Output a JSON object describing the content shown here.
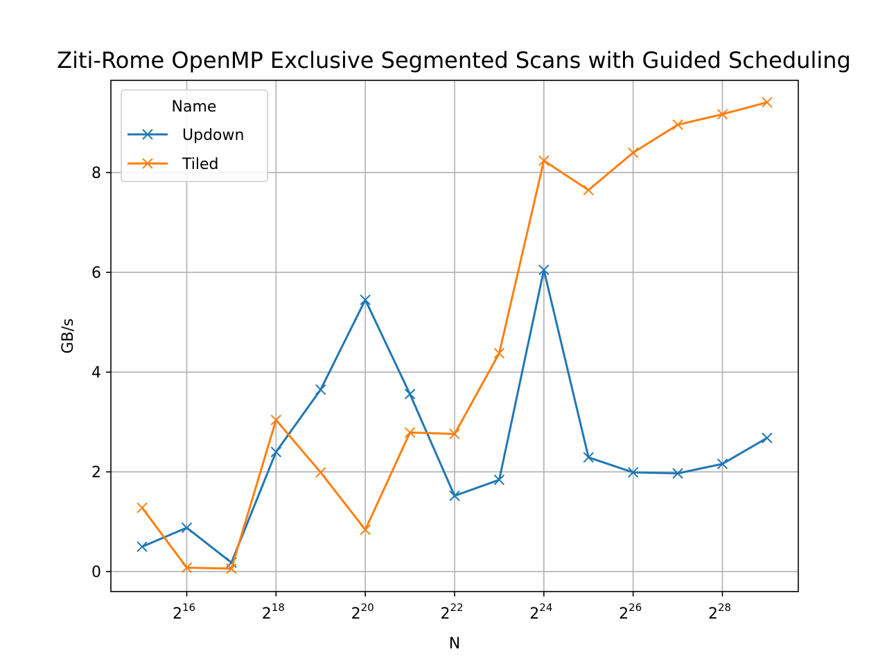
{
  "chart_data": {
    "type": "line",
    "title": "Ziti-Rome OpenMP Exclusive Segmented Scans with Guided Scheduling",
    "xlabel": "N",
    "ylabel": "GB/s",
    "x_scale": "log2",
    "x": [
      32768,
      65536,
      131072,
      262144,
      524288,
      1048576,
      2097152,
      4194304,
      8388608,
      16777216,
      33554432,
      67108864,
      134217728,
      268435456,
      536870912
    ],
    "x_ticks": [
      {
        "value": 65536,
        "base": "2",
        "exp": "16"
      },
      {
        "value": 262144,
        "base": "2",
        "exp": "18"
      },
      {
        "value": 1048576,
        "base": "2",
        "exp": "20"
      },
      {
        "value": 4194304,
        "base": "2",
        "exp": "22"
      },
      {
        "value": 16777216,
        "base": "2",
        "exp": "24"
      },
      {
        "value": 67108864,
        "base": "2",
        "exp": "26"
      },
      {
        "value": 268435456,
        "base": "2",
        "exp": "28"
      }
    ],
    "y_ticks": [
      {
        "value": 0,
        "label": "0"
      },
      {
        "value": 2,
        "label": "2"
      },
      {
        "value": 4,
        "label": "4"
      },
      {
        "value": 6,
        "label": "6"
      },
      {
        "value": 8,
        "label": "8"
      }
    ],
    "ylim": [
      -0.4,
      9.85
    ],
    "grid": true,
    "legend": {
      "title": "Name",
      "position": "upper-left"
    },
    "series": [
      {
        "name": "Updown",
        "color": "#1f77b4",
        "marker": "x",
        "values": [
          0.5,
          0.88,
          0.18,
          2.4,
          3.65,
          5.45,
          3.56,
          1.52,
          1.84,
          6.05,
          2.29,
          1.99,
          1.97,
          2.16,
          2.68
        ]
      },
      {
        "name": "Tiled",
        "color": "#ff7f0e",
        "marker": "x",
        "values": [
          1.28,
          0.08,
          0.06,
          3.04,
          1.99,
          0.84,
          2.79,
          2.76,
          4.38,
          8.24,
          7.65,
          8.4,
          8.96,
          9.17,
          9.41
        ]
      }
    ]
  }
}
